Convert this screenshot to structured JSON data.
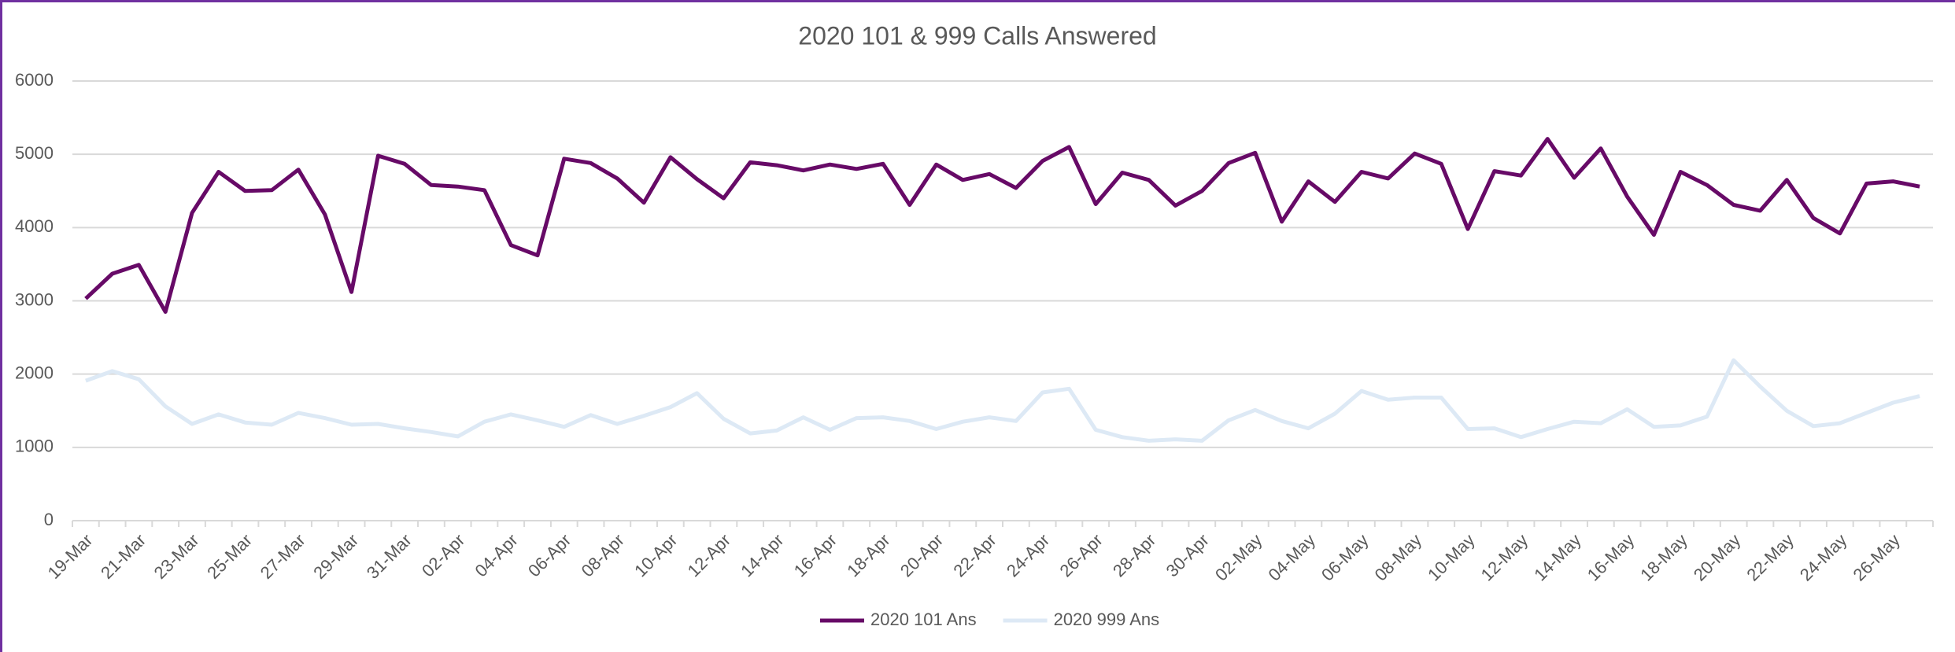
{
  "chart_data": {
    "type": "line",
    "title": "2020 101 & 999 Calls Answered",
    "categories": [
      "19-Mar",
      null,
      "21-Mar",
      null,
      "23-Mar",
      null,
      "25-Mar",
      null,
      "27-Mar",
      null,
      "29-Mar",
      null,
      "31-Mar",
      null,
      "02-Apr",
      null,
      "04-Apr",
      null,
      "06-Apr",
      null,
      "08-Apr",
      null,
      "10-Apr",
      null,
      "12-Apr",
      null,
      "14-Apr",
      null,
      "16-Apr",
      null,
      "18-Apr",
      null,
      "20-Apr",
      null,
      "22-Apr",
      null,
      "24-Apr",
      null,
      "26-Apr",
      null,
      "28-Apr",
      null,
      "30-Apr",
      null,
      "02-May",
      null,
      "04-May",
      null,
      "06-May",
      null,
      "08-May",
      null,
      "10-May",
      null,
      "12-May",
      null,
      "14-May",
      null,
      "16-May",
      null,
      "18-May",
      null,
      "20-May",
      null,
      "22-May",
      null,
      "24-May",
      null,
      "26-May",
      null
    ],
    "series": [
      {
        "name": "2020 101 Ans",
        "color": "#670a67",
        "values": [
          3030,
          3370,
          3490,
          2850,
          4200,
          4760,
          4500,
          4510,
          4790,
          4180,
          3120,
          4980,
          4870,
          4580,
          4560,
          4510,
          3760,
          3620,
          4940,
          4880,
          4670,
          4340,
          4960,
          4660,
          4400,
          4890,
          4850,
          4780,
          4860,
          4800,
          4870,
          4310,
          4860,
          4650,
          4730,
          4540,
          4910,
          5100,
          4320,
          4750,
          4650,
          4300,
          4500,
          4880,
          5020,
          4080,
          4630,
          4350,
          4760,
          4670,
          5010,
          4870,
          3980,
          4770,
          4710,
          5210,
          4680,
          5080,
          4420,
          3900,
          4760,
          4580,
          4310,
          4230,
          4650,
          4130,
          3920,
          4600,
          4630,
          4560
        ]
      },
      {
        "name": "2020 999 Ans",
        "color": "#dde9f5",
        "values": [
          1910,
          2040,
          1930,
          1560,
          1320,
          1450,
          1340,
          1310,
          1470,
          1400,
          1310,
          1320,
          1260,
          1210,
          1150,
          1350,
          1450,
          1370,
          1280,
          1440,
          1320,
          1430,
          1550,
          1740,
          1390,
          1190,
          1230,
          1410,
          1240,
          1400,
          1410,
          1360,
          1250,
          1350,
          1410,
          1360,
          1750,
          1800,
          1240,
          1140,
          1090,
          1110,
          1090,
          1370,
          1510,
          1360,
          1260,
          1460,
          1770,
          1650,
          1680,
          1680,
          1250,
          1260,
          1140,
          1250,
          1350,
          1330,
          1520,
          1280,
          1300,
          1420,
          2190,
          1830,
          1500,
          1290,
          1330,
          1470,
          1610,
          1700
        ]
      }
    ],
    "ylim": [
      0,
      6000
    ],
    "yticks": [
      0,
      1000,
      2000,
      3000,
      4000,
      5000,
      6000
    ],
    "grid": true,
    "legend": "bottom"
  }
}
